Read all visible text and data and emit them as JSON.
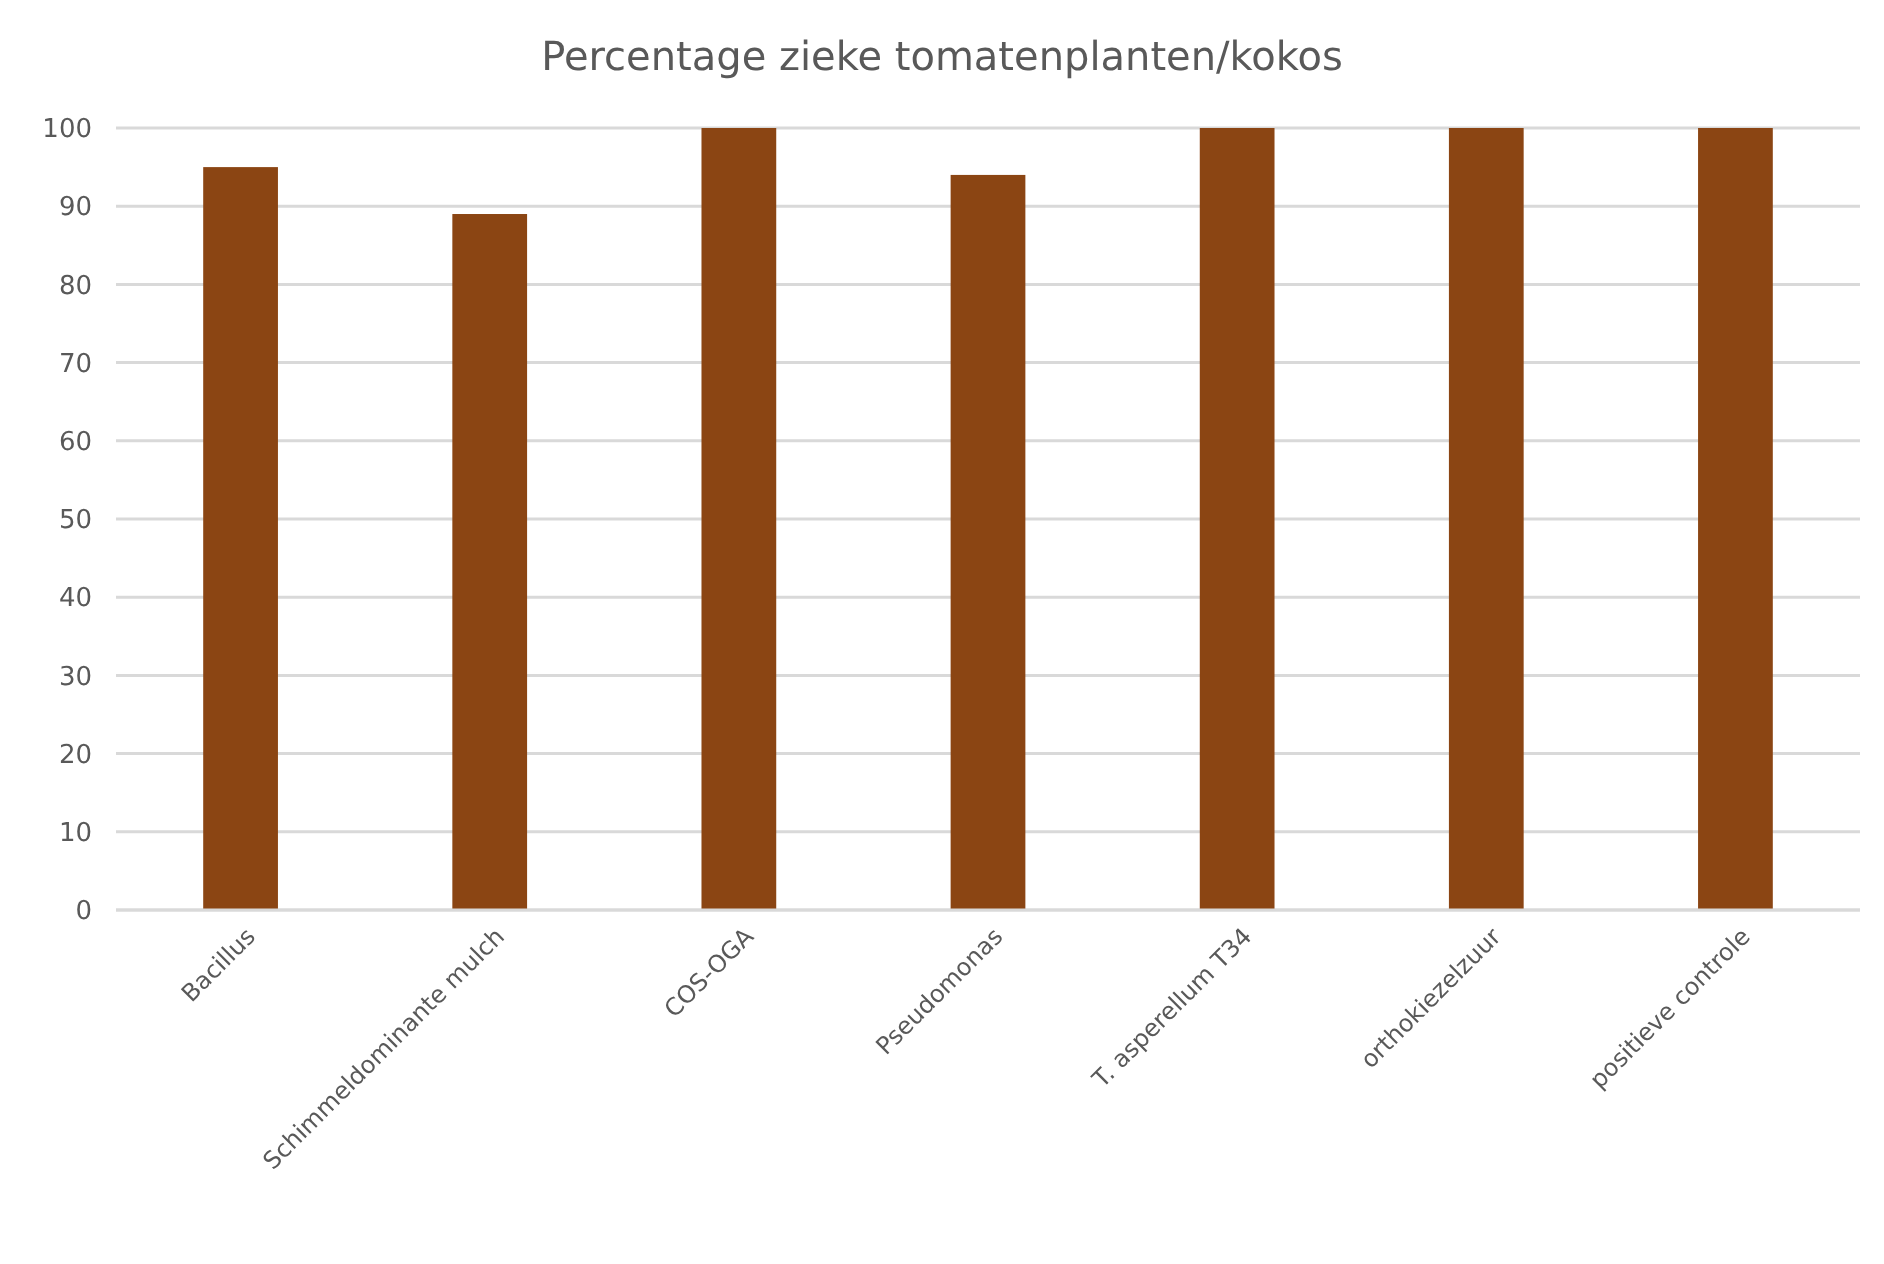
{
  "chart_data": {
    "type": "bar",
    "title": "Percentage zieke tomatenplanten/kokos",
    "categories": [
      "Bacillus",
      "Schimmeldominante mulch",
      "COS-OGA",
      "Pseudomonas",
      "T. asperellum T34",
      "orthokiezelzuur",
      "positieve controle"
    ],
    "values": [
      95,
      89,
      100,
      94,
      100,
      100,
      100
    ],
    "color": "#8b4513",
    "ylim": [
      0,
      100
    ],
    "yticks": [
      0,
      10,
      20,
      30,
      40,
      50,
      60,
      70,
      80,
      90,
      100
    ],
    "grid": "y"
  }
}
